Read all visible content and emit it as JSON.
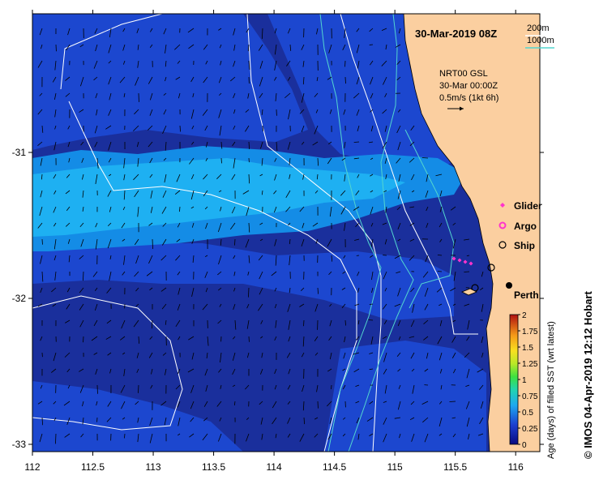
{
  "title": "30-Mar-2019 08Z",
  "depth_contours": {
    "shallow_label": "200m",
    "deep_label": "1000m",
    "shallow_color": "#ffffff",
    "deep_color": "#53d6cf"
  },
  "current_info": {
    "line1": "NRT00 GSL",
    "line2": "30-Mar 00:00Z",
    "line3": "0.5m/s (1kt 6h)"
  },
  "legend": {
    "glider": "Glider",
    "argo": "Argo",
    "ship": "Ship",
    "glider_color": "#ff33cc",
    "argo_color": "#ff33cc"
  },
  "place_label": "Perth",
  "x_axis": {
    "ticks": [
      "112",
      "112.5",
      "113",
      "113.5",
      "114",
      "114.5",
      "115",
      "115.5",
      "116"
    ],
    "range": [
      112,
      116.2
    ]
  },
  "y_axis": {
    "ticks": [
      "-31",
      "-32",
      "-33"
    ],
    "range": [
      -33.05,
      -30.05
    ]
  },
  "colorbar": {
    "label": "Age (days) of filled SST (wrt latest)",
    "ticks": [
      "0",
      "0.25",
      "0.5",
      "0.75",
      "1",
      "1.25",
      "1.5",
      "1.75",
      "2"
    ],
    "range": [
      0,
      2
    ]
  },
  "colors": {
    "land": "#fbcfa0",
    "sea_deep": "#1a2f9c",
    "sea_mid": "#1c47cf",
    "band_light": "#1eb0f2",
    "band_medium": "#148ce6"
  },
  "credit": "© IMOS 04-Apr-2019 12:12 Hobart"
}
